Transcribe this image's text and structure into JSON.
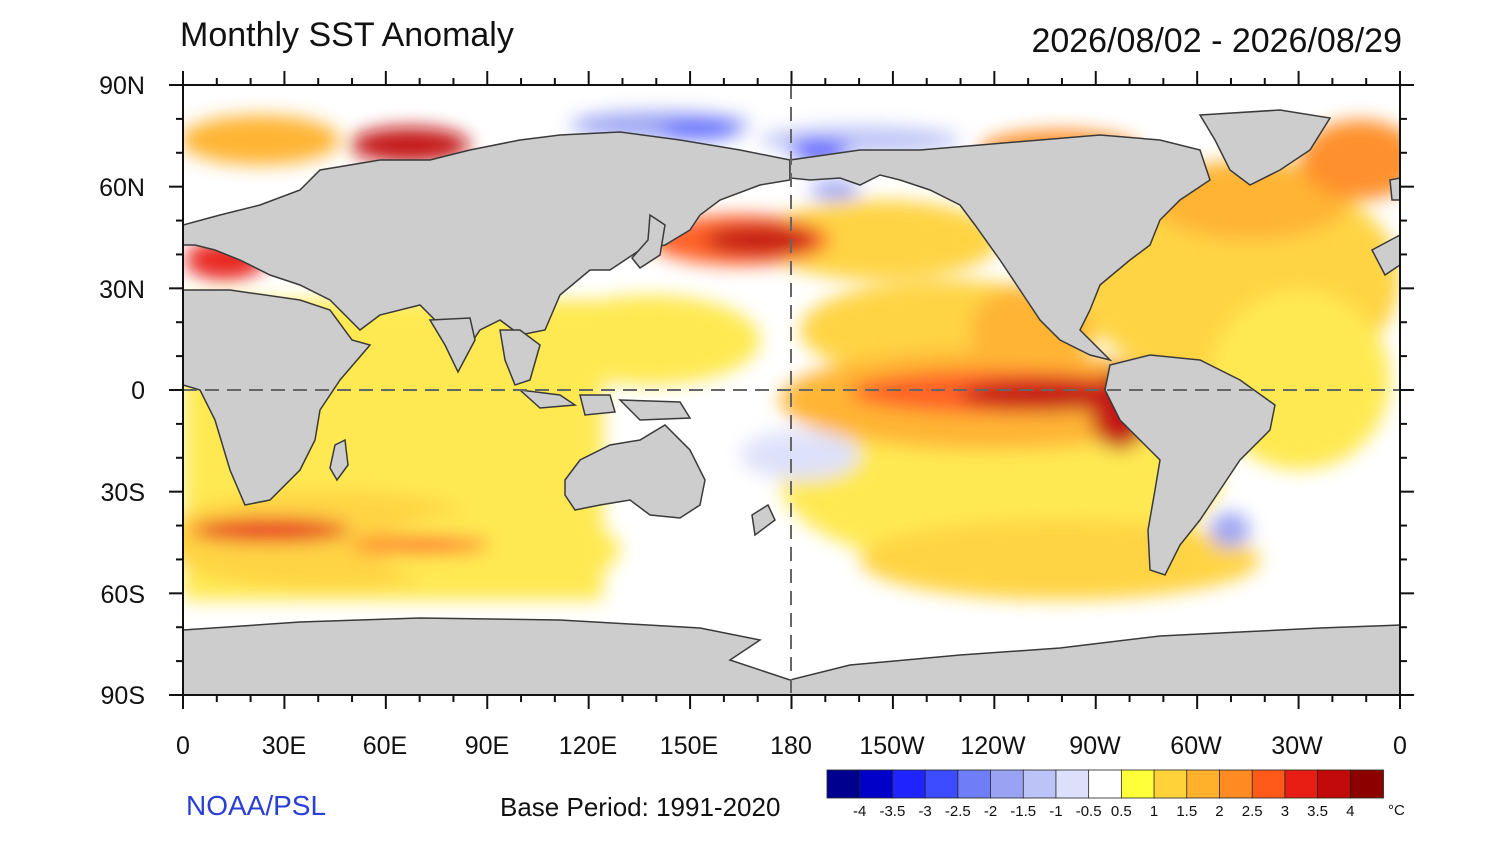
{
  "header": {
    "title": "Monthly SST Anomaly",
    "date_range": "2026/08/02 - 2026/08/29"
  },
  "footer": {
    "credit": "NOAA/PSL",
    "base_period": "Base Period: 1991-2020"
  },
  "axes": {
    "lat_labels": [
      "90N",
      "60N",
      "30N",
      "0",
      "30S",
      "60S",
      "90S"
    ],
    "lon_labels": [
      "0",
      "30E",
      "60E",
      "90E",
      "120E",
      "150E",
      "180",
      "150W",
      "120W",
      "90W",
      "60W",
      "30W",
      "0"
    ]
  },
  "colorbar": {
    "labels": [
      "-4",
      "-3.5",
      "-3",
      "-2.5",
      "-2",
      "-1.5",
      "-1",
      "-0.5",
      "0.5",
      "1",
      "1.5",
      "2",
      "2.5",
      "3",
      "3.5",
      "4"
    ],
    "unit": "°C",
    "colors": [
      "#00008f",
      "#0000c8",
      "#1f24ff",
      "#3b4dff",
      "#6f7df6",
      "#9aa3f3",
      "#bcc3f6",
      "#dde0fa",
      "#ffffff",
      "#ffff3a",
      "#ffd23a",
      "#ffb12c",
      "#ff8b22",
      "#ff5a1a",
      "#e81e14",
      "#c20a0a",
      "#8c0000"
    ]
  },
  "colors": {
    "land": "#cdcdcd",
    "coast": "#3a3a3a",
    "warm_strong": "#8c0000",
    "warm": "#ff8b22",
    "mild": "#ffd23a",
    "cool": "#9aa3f3",
    "credit_blue": "#2a3fd6"
  }
}
